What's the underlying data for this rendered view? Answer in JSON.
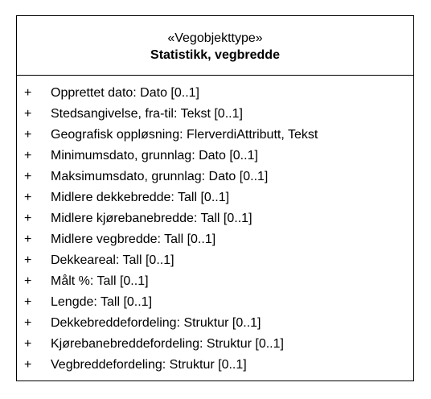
{
  "class": {
    "stereotype": "«Vegobjekttype»",
    "name": "Statistikk, vegbredde",
    "attributes": [
      {
        "visibility": "+",
        "text": "Opprettet dato: Dato [0..1]"
      },
      {
        "visibility": "+",
        "text": "Stedsangivelse, fra-til: Tekst [0..1]"
      },
      {
        "visibility": "+",
        "text": "Geografisk oppløsning: FlerverdiAttributt, Tekst"
      },
      {
        "visibility": "+",
        "text": "Minimumsdato, grunnlag: Dato [0..1]"
      },
      {
        "visibility": "+",
        "text": "Maksimumsdato, grunnlag: Dato [0..1]"
      },
      {
        "visibility": "+",
        "text": "Midlere dekkebredde: Tall [0..1]"
      },
      {
        "visibility": "+",
        "text": "Midlere kjørebanebredde: Tall [0..1]"
      },
      {
        "visibility": "+",
        "text": "Midlere vegbredde: Tall [0..1]"
      },
      {
        "visibility": "+",
        "text": "Dekkeareal: Tall [0..1]"
      },
      {
        "visibility": "+",
        "text": "Målt %: Tall [0..1]"
      },
      {
        "visibility": "+",
        "text": "Lengde: Tall [0..1]"
      },
      {
        "visibility": "+",
        "text": "Dekkebreddefordeling: Struktur [0..1]"
      },
      {
        "visibility": "+",
        "text": "Kjørebanebreddefordeling: Struktur [0..1]"
      },
      {
        "visibility": "+",
        "text": "Vegbreddefordeling: Struktur [0..1]"
      }
    ]
  }
}
